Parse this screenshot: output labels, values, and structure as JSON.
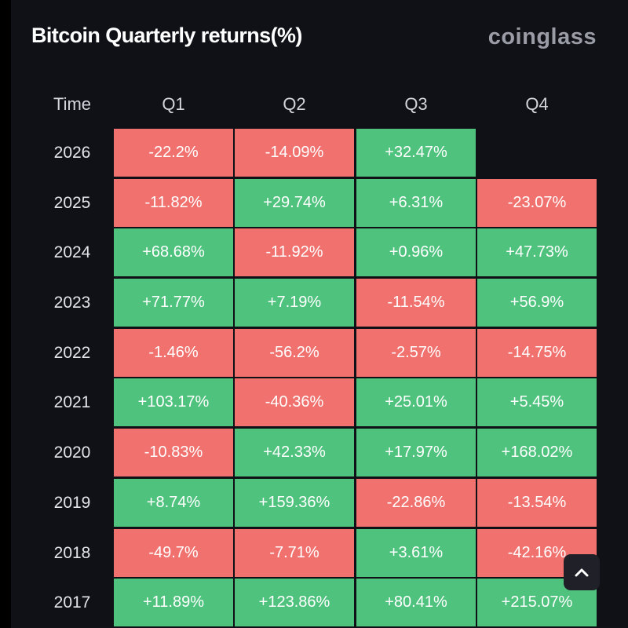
{
  "title": "Bitcoin Quarterly returns(%)",
  "brand": "coinglass",
  "columns": {
    "time": "Time",
    "q1": "Q1",
    "q2": "Q2",
    "q3": "Q3",
    "q4": "Q4"
  },
  "colors": {
    "positive": "#4fc37e",
    "negative": "#f0716e",
    "background": "#101117"
  },
  "rows": [
    {
      "year": "2026",
      "values": [
        "-22.2%",
        "-14.09%",
        "+32.47%",
        ""
      ]
    },
    {
      "year": "2025",
      "values": [
        "-11.82%",
        "+29.74%",
        "+6.31%",
        "-23.07%"
      ]
    },
    {
      "year": "2024",
      "values": [
        "+68.68%",
        "-11.92%",
        "+0.96%",
        "+47.73%"
      ]
    },
    {
      "year": "2023",
      "values": [
        "+71.77%",
        "+7.19%",
        "-11.54%",
        "+56.9%"
      ]
    },
    {
      "year": "2022",
      "values": [
        "-1.46%",
        "-56.2%",
        "-2.57%",
        "-14.75%"
      ]
    },
    {
      "year": "2021",
      "values": [
        "+103.17%",
        "-40.36%",
        "+25.01%",
        "+5.45%"
      ]
    },
    {
      "year": "2020",
      "values": [
        "-10.83%",
        "+42.33%",
        "+17.97%",
        "+168.02%"
      ]
    },
    {
      "year": "2019",
      "values": [
        "+8.74%",
        "+159.36%",
        "-22.86%",
        "-13.54%"
      ]
    },
    {
      "year": "2018",
      "values": [
        "-49.7%",
        "-7.71%",
        "+3.61%",
        "-42.16%"
      ]
    },
    {
      "year": "2017",
      "values": [
        "+11.89%",
        "+123.86%",
        "+80.41%",
        "+215.07%"
      ]
    }
  ],
  "scroll_top_button": {
    "icon": "chevron-up-icon"
  }
}
